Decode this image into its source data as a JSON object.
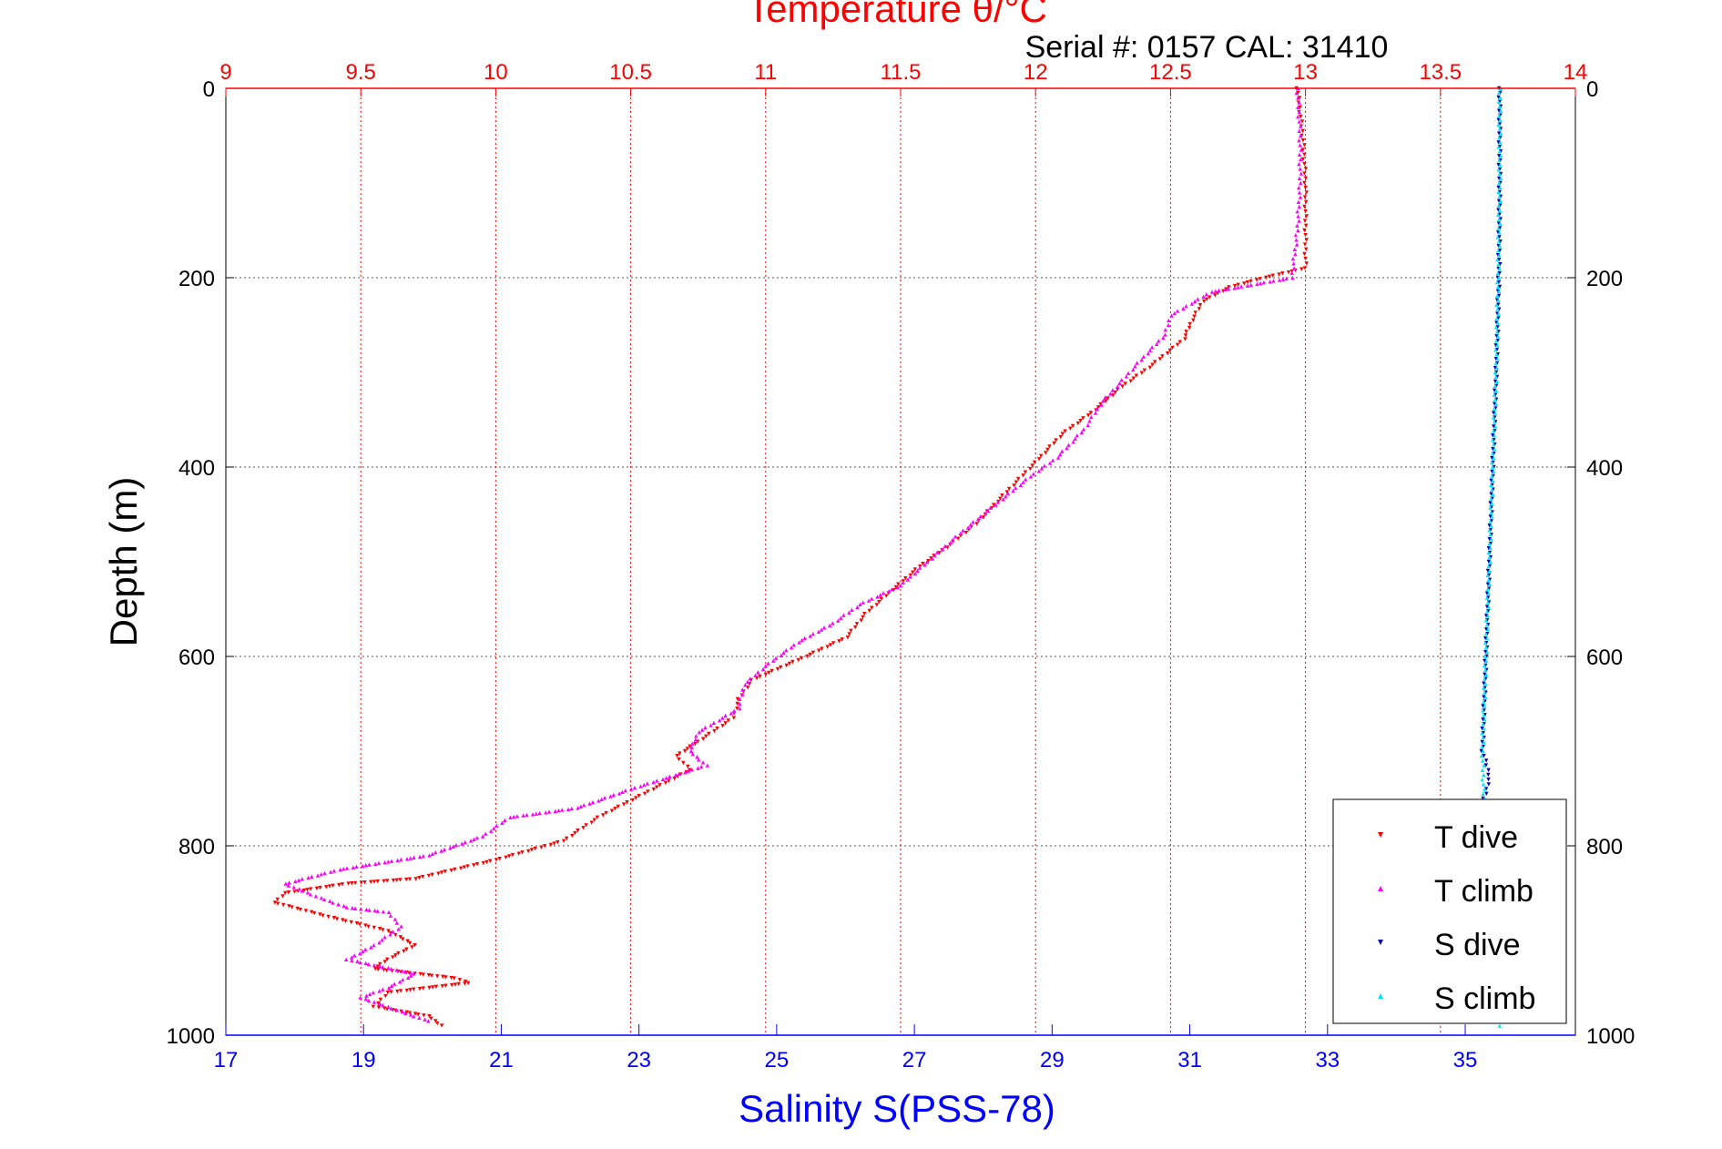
{
  "chart_data": {
    "type": "scatter",
    "title": "Temperature θ/°C",
    "subtitle": "Serial #: 0157  CAL: 31410",
    "ylabel": "Depth (m)",
    "xlabel_bottom": "Salinity S(PSS-78)",
    "xlabel_top": "Temperature θ/°C",
    "ylim": [
      1000,
      0
    ],
    "y_ticks": [
      "0",
      "200",
      "400",
      "600",
      "800",
      "1000"
    ],
    "x_top_lim": [
      9,
      14
    ],
    "x_top_ticks": [
      "9",
      "9.5",
      "10",
      "10.5",
      "11",
      "11.5",
      "12",
      "12.5",
      "13",
      "13.5",
      "14"
    ],
    "x_bottom_lim": [
      17,
      36.6
    ],
    "x_bottom_ticks": [
      "17",
      "19",
      "21",
      "23",
      "25",
      "27",
      "29",
      "31",
      "33",
      "35"
    ],
    "grid": true,
    "legend_position": "bottom-right",
    "colors": {
      "temperature_axis": "#ff0000",
      "salinity_axis": "#0000ff",
      "t_dive": "#ff0000",
      "t_climb": "#ff00ff",
      "s_dive": "#0000b4",
      "s_climb": "#00e5ee"
    },
    "series": [
      {
        "name": "T dive",
        "axis": "temperature",
        "marker": "triangle-down",
        "color": "#ff0000",
        "points": [
          [
            12.97,
            0
          ],
          [
            12.99,
            50
          ],
          [
            13.0,
            100
          ],
          [
            13.0,
            150
          ],
          [
            13.0,
            190
          ],
          [
            12.85,
            200
          ],
          [
            12.72,
            210
          ],
          [
            12.62,
            225
          ],
          [
            12.58,
            245
          ],
          [
            12.55,
            265
          ],
          [
            12.42,
            295
          ],
          [
            12.32,
            315
          ],
          [
            12.22,
            340
          ],
          [
            12.1,
            365
          ],
          [
            12.0,
            395
          ],
          [
            11.88,
            430
          ],
          [
            11.78,
            460
          ],
          [
            11.67,
            485
          ],
          [
            11.57,
            505
          ],
          [
            11.47,
            530
          ],
          [
            11.37,
            555
          ],
          [
            11.3,
            580
          ],
          [
            11.15,
            600
          ],
          [
            10.95,
            625
          ],
          [
            10.9,
            645
          ],
          [
            10.88,
            665
          ],
          [
            10.75,
            690
          ],
          [
            10.67,
            705
          ],
          [
            10.72,
            720
          ],
          [
            10.55,
            745
          ],
          [
            10.38,
            770
          ],
          [
            10.25,
            795
          ],
          [
            10.0,
            815
          ],
          [
            9.7,
            835
          ],
          [
            9.45,
            840
          ],
          [
            9.22,
            850
          ],
          [
            9.18,
            860
          ],
          [
            9.38,
            875
          ],
          [
            9.6,
            890
          ],
          [
            9.7,
            905
          ],
          [
            9.6,
            920
          ],
          [
            9.55,
            930
          ],
          [
            9.85,
            940
          ],
          [
            9.9,
            945
          ],
          [
            9.6,
            955
          ],
          [
            9.55,
            970
          ],
          [
            9.75,
            980
          ],
          [
            9.8,
            990
          ]
        ]
      },
      {
        "name": "T climb",
        "axis": "temperature",
        "marker": "triangle-up",
        "color": "#ff00ff",
        "points": [
          [
            12.97,
            0
          ],
          [
            12.98,
            50
          ],
          [
            12.98,
            100
          ],
          [
            12.97,
            150
          ],
          [
            12.95,
            200
          ],
          [
            12.65,
            215
          ],
          [
            12.5,
            240
          ],
          [
            12.48,
            260
          ],
          [
            12.38,
            290
          ],
          [
            12.3,
            315
          ],
          [
            12.25,
            330
          ],
          [
            12.18,
            360
          ],
          [
            12.08,
            390
          ],
          [
            11.98,
            410
          ],
          [
            11.85,
            440
          ],
          [
            11.72,
            470
          ],
          [
            11.6,
            500
          ],
          [
            11.5,
            525
          ],
          [
            11.35,
            545
          ],
          [
            11.25,
            565
          ],
          [
            11.12,
            585
          ],
          [
            11.0,
            610
          ],
          [
            10.92,
            630
          ],
          [
            10.9,
            655
          ],
          [
            10.75,
            680
          ],
          [
            10.72,
            700
          ],
          [
            10.78,
            715
          ],
          [
            10.5,
            740
          ],
          [
            10.3,
            760
          ],
          [
            10.05,
            770
          ],
          [
            9.95,
            790
          ],
          [
            9.75,
            810
          ],
          [
            9.42,
            825
          ],
          [
            9.22,
            840
          ],
          [
            9.35,
            855
          ],
          [
            9.45,
            865
          ],
          [
            9.6,
            870
          ],
          [
            9.65,
            885
          ],
          [
            9.55,
            905
          ],
          [
            9.45,
            920
          ],
          [
            9.7,
            935
          ],
          [
            9.6,
            950
          ],
          [
            9.5,
            960
          ],
          [
            9.65,
            975
          ],
          [
            9.75,
            985
          ]
        ]
      },
      {
        "name": "S dive",
        "axis": "salinity",
        "marker": "triangle-down",
        "color": "#0000b4",
        "points": [
          [
            35.5,
            0
          ],
          [
            35.5,
            100
          ],
          [
            35.49,
            200
          ],
          [
            35.45,
            300
          ],
          [
            35.4,
            400
          ],
          [
            35.35,
            500
          ],
          [
            35.3,
            600
          ],
          [
            35.25,
            700
          ],
          [
            35.35,
            725
          ],
          [
            35.3,
            745
          ],
          [
            35.25,
            755
          ]
        ]
      },
      {
        "name": "S climb",
        "axis": "salinity",
        "marker": "triangle-up",
        "color": "#00e5ee",
        "points": [
          [
            35.5,
            0
          ],
          [
            35.5,
            100
          ],
          [
            35.48,
            200
          ],
          [
            35.45,
            300
          ],
          [
            35.4,
            400
          ],
          [
            35.35,
            500
          ],
          [
            35.3,
            600
          ],
          [
            35.25,
            700
          ],
          [
            35.27,
            750
          ],
          [
            35.3,
            800
          ],
          [
            35.35,
            850
          ],
          [
            35.4,
            900
          ],
          [
            35.45,
            950
          ],
          [
            35.5,
            990
          ]
        ]
      }
    ]
  }
}
